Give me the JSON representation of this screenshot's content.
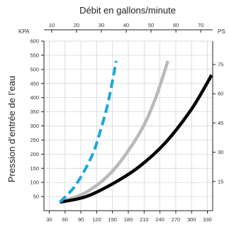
{
  "chart_data": {
    "type": "line",
    "title": "Débit en gallons/minute",
    "ylabel": "Pression d’entrée de l’eau",
    "left_unit": "KPA",
    "right_unit": "PS",
    "bottom_axis": {
      "range": [
        20,
        340
      ],
      "ticks": [
        "30",
        "60",
        "90",
        "120",
        "150",
        "180",
        "210",
        "240",
        "270",
        "300",
        "330"
      ]
    },
    "top_axis": {
      "range": [
        6.9,
        74.8
      ],
      "ticks": [
        "10",
        "20",
        "30",
        "40",
        "50",
        "60",
        "70"
      ]
    },
    "left_axis": {
      "range": [
        0,
        600
      ],
      "ticks": [
        "50",
        "100",
        "150",
        "200",
        "250",
        "300",
        "350",
        "400",
        "450",
        "500",
        "550",
        "600"
      ]
    },
    "right_axis": {
      "range": [
        0,
        87
      ],
      "ticks": [
        "15",
        "30",
        "45",
        "60",
        "75"
      ]
    },
    "grid": true,
    "series": [
      {
        "style": "dashed",
        "color": "#1aa7e0",
        "x": [
          50,
          80,
          110,
          125,
          140,
          150,
          157
        ],
        "y": [
          30,
          90,
          190,
          270,
          370,
          460,
          530
        ]
      },
      {
        "style": "solid",
        "color": "#b9b9b9",
        "x": [
          50,
          100,
          150,
          200,
          230,
          255
        ],
        "y": [
          30,
          65,
          140,
          270,
          390,
          530
        ]
      },
      {
        "style": "solid",
        "color": "#000000",
        "x": [
          50,
          100,
          150,
          200,
          250,
          300,
          338
        ],
        "y": [
          30,
          50,
          95,
          155,
          240,
          360,
          480
        ]
      }
    ]
  }
}
